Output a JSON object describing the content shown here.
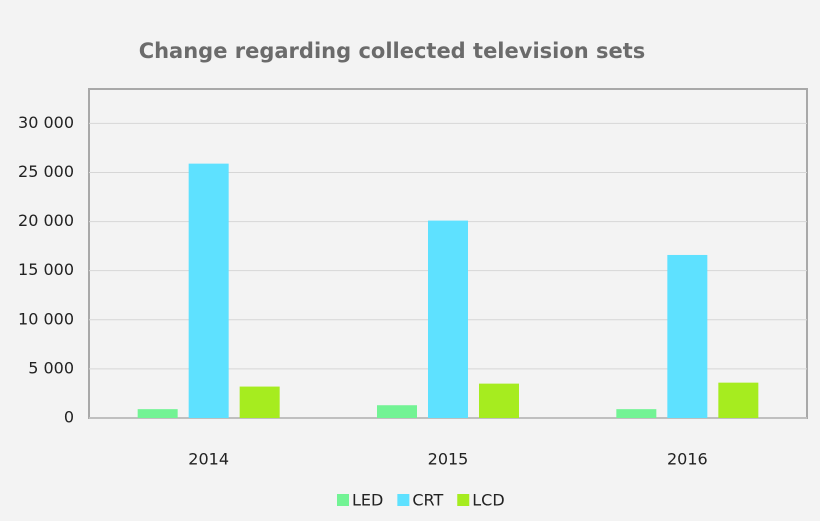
{
  "chart_data": {
    "type": "bar",
    "title": "Change regarding collected television sets",
    "categories": [
      "2014",
      "2015",
      "2016"
    ],
    "series": [
      {
        "name": "LED",
        "color": "#72f394",
        "values": [
          900,
          1300,
          900
        ]
      },
      {
        "name": "CRT",
        "color": "#5ee1ff",
        "values": [
          25900,
          20100,
          16600
        ]
      },
      {
        "name": "LCD",
        "color": "#a6ec1f",
        "values": [
          3200,
          3500,
          3600
        ]
      }
    ],
    "ylim": [
      0,
      33500
    ],
    "yticks": [
      {
        "value": 0,
        "label": "0"
      },
      {
        "value": 5000,
        "label": "5 000"
      },
      {
        "value": 10000,
        "label": "10 000"
      },
      {
        "value": 15000,
        "label": "15 000"
      },
      {
        "value": 20000,
        "label": "20 000"
      },
      {
        "value": 25000,
        "label": "25 000"
      },
      {
        "value": 30000,
        "label": "30 000"
      }
    ],
    "grid": true,
    "legend": "bottom"
  }
}
